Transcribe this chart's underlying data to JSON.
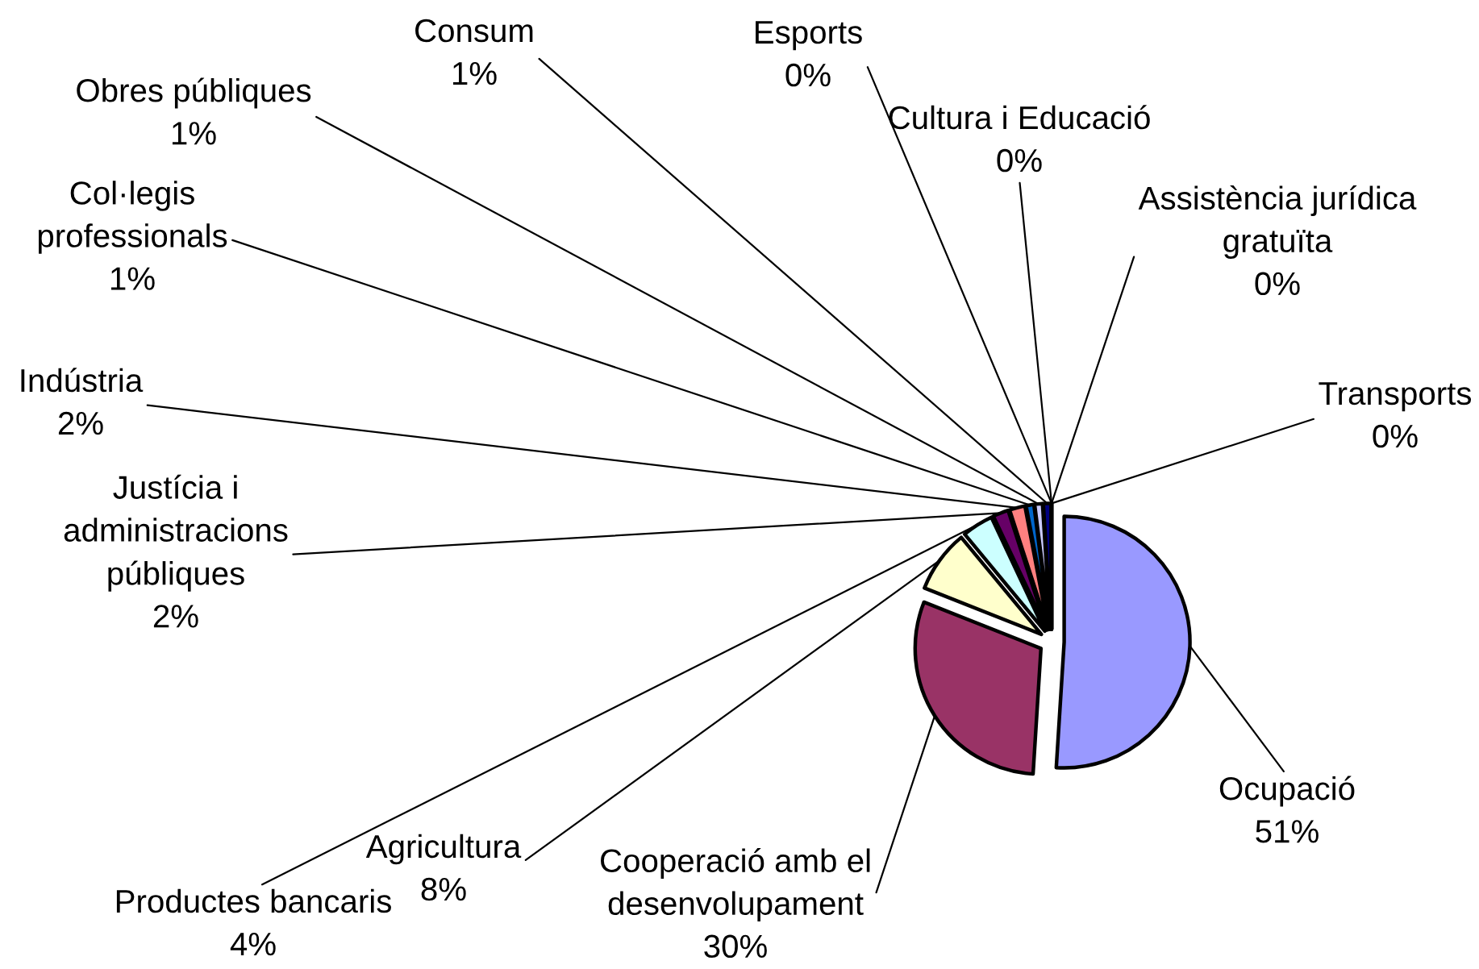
{
  "chart_data": {
    "type": "pie",
    "categories": [
      "Ocupació",
      "Cooperació amb el desenvolupament",
      "Agricultura",
      "Productes bancaris",
      "Justícia i administracions públiques",
      "Indústria",
      "Col·legis professionals",
      "Obres públiques",
      "Consum",
      "Esports",
      "Cultura i Educació",
      "Assistència jurídica gratuïta",
      "Transports"
    ],
    "values": [
      51,
      30,
      8,
      4,
      2,
      2,
      1,
      1,
      1,
      0,
      0,
      0,
      0
    ],
    "colors": [
      "#9999ff",
      "#993366",
      "#ffffcc",
      "#ccffff",
      "#660066",
      "#ff8080",
      "#0066cc",
      "#ccccff",
      "#000080",
      "#ff00ff",
      "#ffff00",
      "#00ffff",
      "#008080"
    ],
    "value_labels": [
      "51%",
      "30%",
      "8%",
      "4%",
      "2%",
      "2%",
      "1%",
      "1%",
      "1%",
      "0%",
      "0%",
      "0%",
      "0%"
    ]
  }
}
